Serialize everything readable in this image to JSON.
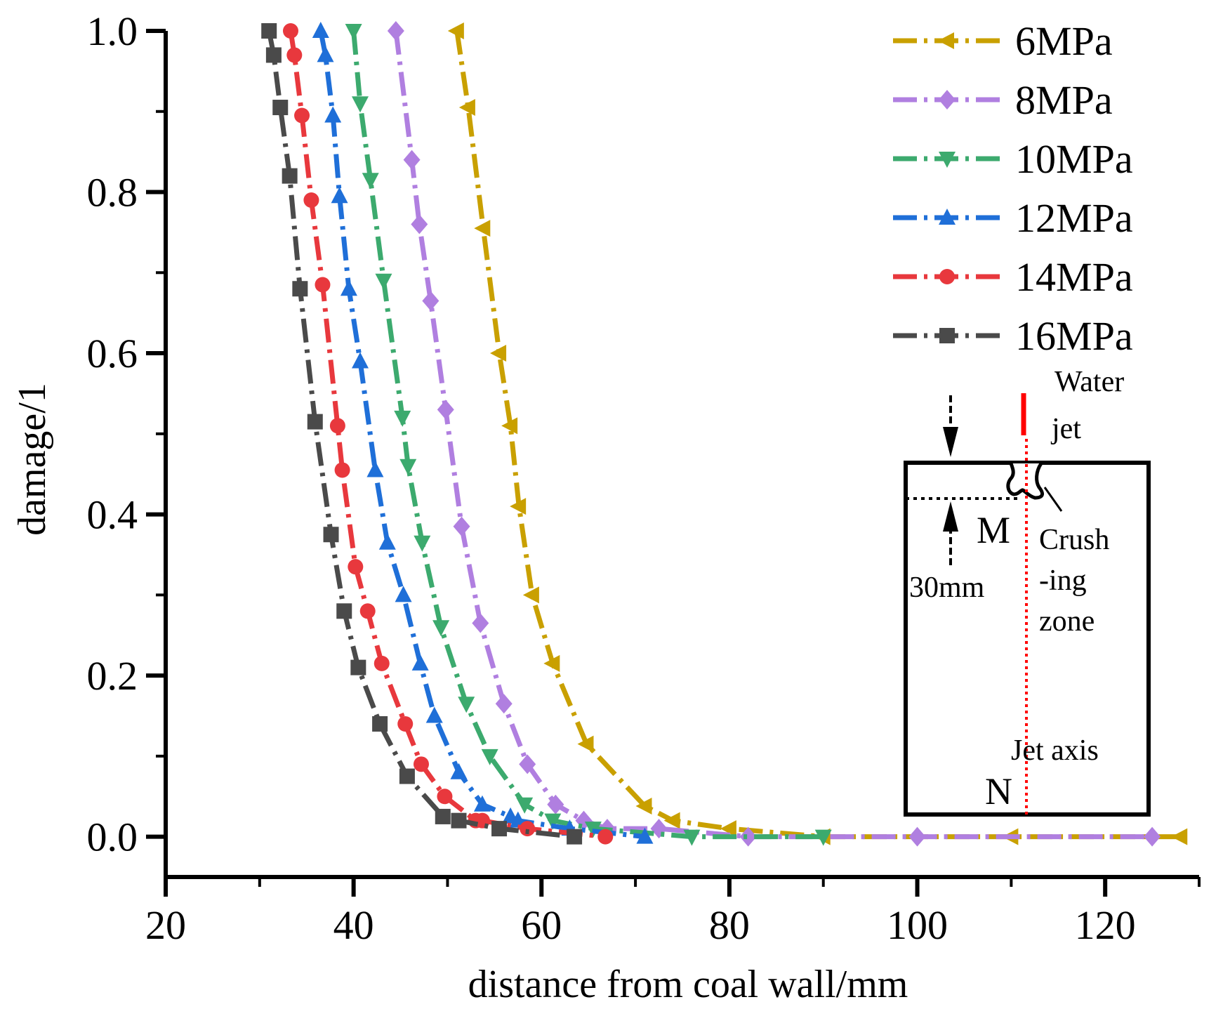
{
  "chart_data": {
    "type": "line",
    "title": "",
    "xlabel": "distance from coal wall/mm",
    "ylabel": "damage/1",
    "xlim": [
      20,
      130
    ],
    "ylim": [
      -0.05,
      1.0
    ],
    "xticks": [
      20,
      40,
      60,
      80,
      100,
      120
    ],
    "yticks": [
      0.0,
      0.2,
      0.4,
      0.6,
      0.8,
      1.0
    ],
    "xtick_labels": [
      "20",
      "40",
      "60",
      "80",
      "100",
      "120"
    ],
    "ytick_labels": [
      "0.0",
      "0.2",
      "0.4",
      "0.6",
      "0.8",
      "1.0"
    ],
    "legend_position": "top-right",
    "series": [
      {
        "name": "6MPa",
        "color": "#C9A000",
        "marker": "triangle-left",
        "x": [
          51.0,
          52.2,
          53.8,
          55.5,
          56.7,
          57.6,
          59.0,
          61.2,
          64.8,
          71.0,
          74.0,
          80.0,
          90.0,
          110.0,
          128.0
        ],
        "y": [
          1.0,
          0.905,
          0.755,
          0.6,
          0.51,
          0.41,
          0.3,
          0.215,
          0.115,
          0.038,
          0.02,
          0.01,
          0.0,
          0.0,
          0.0
        ]
      },
      {
        "name": "8MPa",
        "color": "#B07FE0",
        "marker": "diamond",
        "x": [
          44.5,
          46.2,
          47.0,
          48.2,
          49.8,
          51.5,
          53.5,
          56.0,
          58.5,
          61.5,
          64.5,
          67.0,
          72.5,
          82.0,
          100.0,
          125.0
        ],
        "y": [
          1.0,
          0.84,
          0.76,
          0.665,
          0.53,
          0.385,
          0.265,
          0.165,
          0.09,
          0.04,
          0.02,
          0.01,
          0.01,
          0.0,
          0.0,
          0.0
        ]
      },
      {
        "name": "10MPa",
        "color": "#3CAA6E",
        "marker": "triangle-down",
        "x": [
          40.0,
          40.7,
          41.8,
          43.2,
          45.2,
          45.8,
          47.3,
          49.3,
          52.0,
          54.5,
          58.2,
          61.2,
          65.5,
          76.0,
          90.0
        ],
        "y": [
          1.0,
          0.91,
          0.815,
          0.69,
          0.52,
          0.46,
          0.365,
          0.26,
          0.165,
          0.1,
          0.04,
          0.02,
          0.01,
          0.0,
          0.0
        ]
      },
      {
        "name": "12MPa",
        "color": "#1F6FD8",
        "marker": "triangle-up",
        "x": [
          36.5,
          37.0,
          37.8,
          38.5,
          39.5,
          40.7,
          42.3,
          43.6,
          45.3,
          47.1,
          48.6,
          51.2,
          53.7,
          56.7,
          57.5,
          63.0,
          71.0
        ],
        "y": [
          1.0,
          0.97,
          0.895,
          0.795,
          0.68,
          0.59,
          0.455,
          0.365,
          0.3,
          0.215,
          0.15,
          0.08,
          0.04,
          0.025,
          0.02,
          0.01,
          0.0
        ]
      },
      {
        "name": "14MPa",
        "color": "#E8383D",
        "marker": "circle",
        "x": [
          33.3,
          33.7,
          34.5,
          35.5,
          36.7,
          38.3,
          38.8,
          40.2,
          41.5,
          43.0,
          45.5,
          47.2,
          49.7,
          53.0,
          53.7,
          58.5,
          66.8
        ],
        "y": [
          1.0,
          0.97,
          0.895,
          0.79,
          0.685,
          0.51,
          0.455,
          0.335,
          0.28,
          0.215,
          0.14,
          0.09,
          0.05,
          0.02,
          0.02,
          0.01,
          0.0
        ]
      },
      {
        "name": "16MPa",
        "color": "#4A4A4A",
        "marker": "square",
        "x": [
          31.0,
          31.5,
          32.2,
          33.2,
          34.3,
          35.9,
          37.6,
          39.0,
          40.5,
          42.8,
          45.7,
          49.5,
          51.2,
          55.5,
          63.5
        ],
        "y": [
          1.0,
          0.97,
          0.905,
          0.82,
          0.68,
          0.515,
          0.375,
          0.28,
          0.21,
          0.14,
          0.075,
          0.025,
          0.02,
          0.01,
          0.0
        ]
      }
    ]
  },
  "inset": {
    "water_label": "Water",
    "jet_label": "jet",
    "m_label": "M",
    "depth_label": "30mm",
    "crush_line1": "Crush",
    "crush_line2": "-ing",
    "crush_line3": "zone",
    "axis_label": "Jet axis",
    "n_label": "N",
    "axis_color": "#FF0000"
  }
}
